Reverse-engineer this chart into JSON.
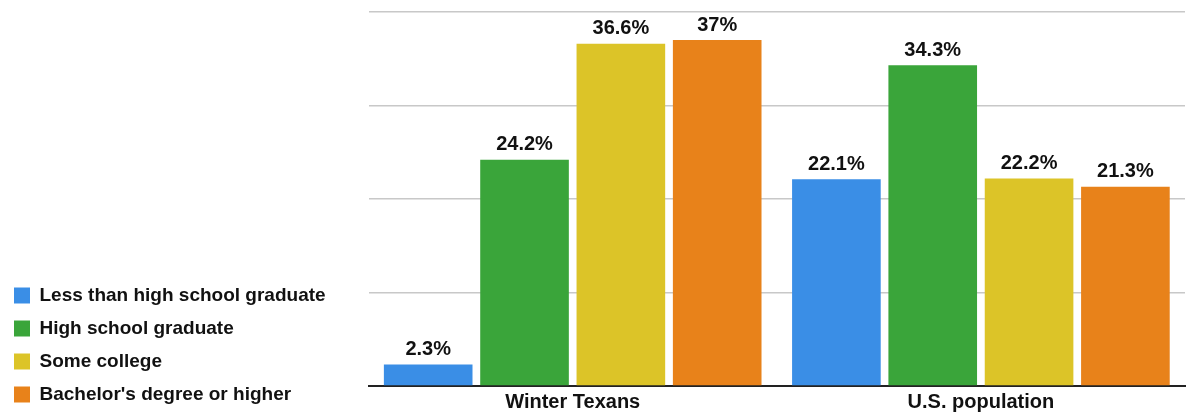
{
  "chart_data": {
    "type": "bar",
    "categories": [
      "Winter Texans",
      "U.S. population"
    ],
    "series": [
      {
        "name": "Less than high school graduate",
        "color": "#3a8ee6",
        "values": [
          2.3,
          22.1
        ],
        "value_labels": [
          "2.3%",
          "22.1%"
        ]
      },
      {
        "name": "High school graduate",
        "color": "#3aa53a",
        "values": [
          24.2,
          34.3
        ],
        "value_labels": [
          "24.2%",
          "34.3%"
        ]
      },
      {
        "name": "Some college",
        "color": "#dcc428",
        "values": [
          36.6,
          22.2
        ],
        "value_labels": [
          "36.6%",
          "22.2%"
        ]
      },
      {
        "name": "Bachelor's degree or higher",
        "color": "#e8821a",
        "values": [
          37,
          21.3
        ],
        "value_labels": [
          "37%",
          "21.3%"
        ]
      }
    ],
    "ylim": [
      0,
      40
    ],
    "yticks": [
      {
        "value": 0,
        "label": null
      },
      {
        "value": 10,
        "label": null
      },
      {
        "value": 20,
        "label": null
      },
      {
        "value": 30,
        "label": null
      },
      {
        "value": 40,
        "label": null
      }
    ],
    "grid": "y",
    "legend": "left",
    "tick_labels": "x"
  }
}
